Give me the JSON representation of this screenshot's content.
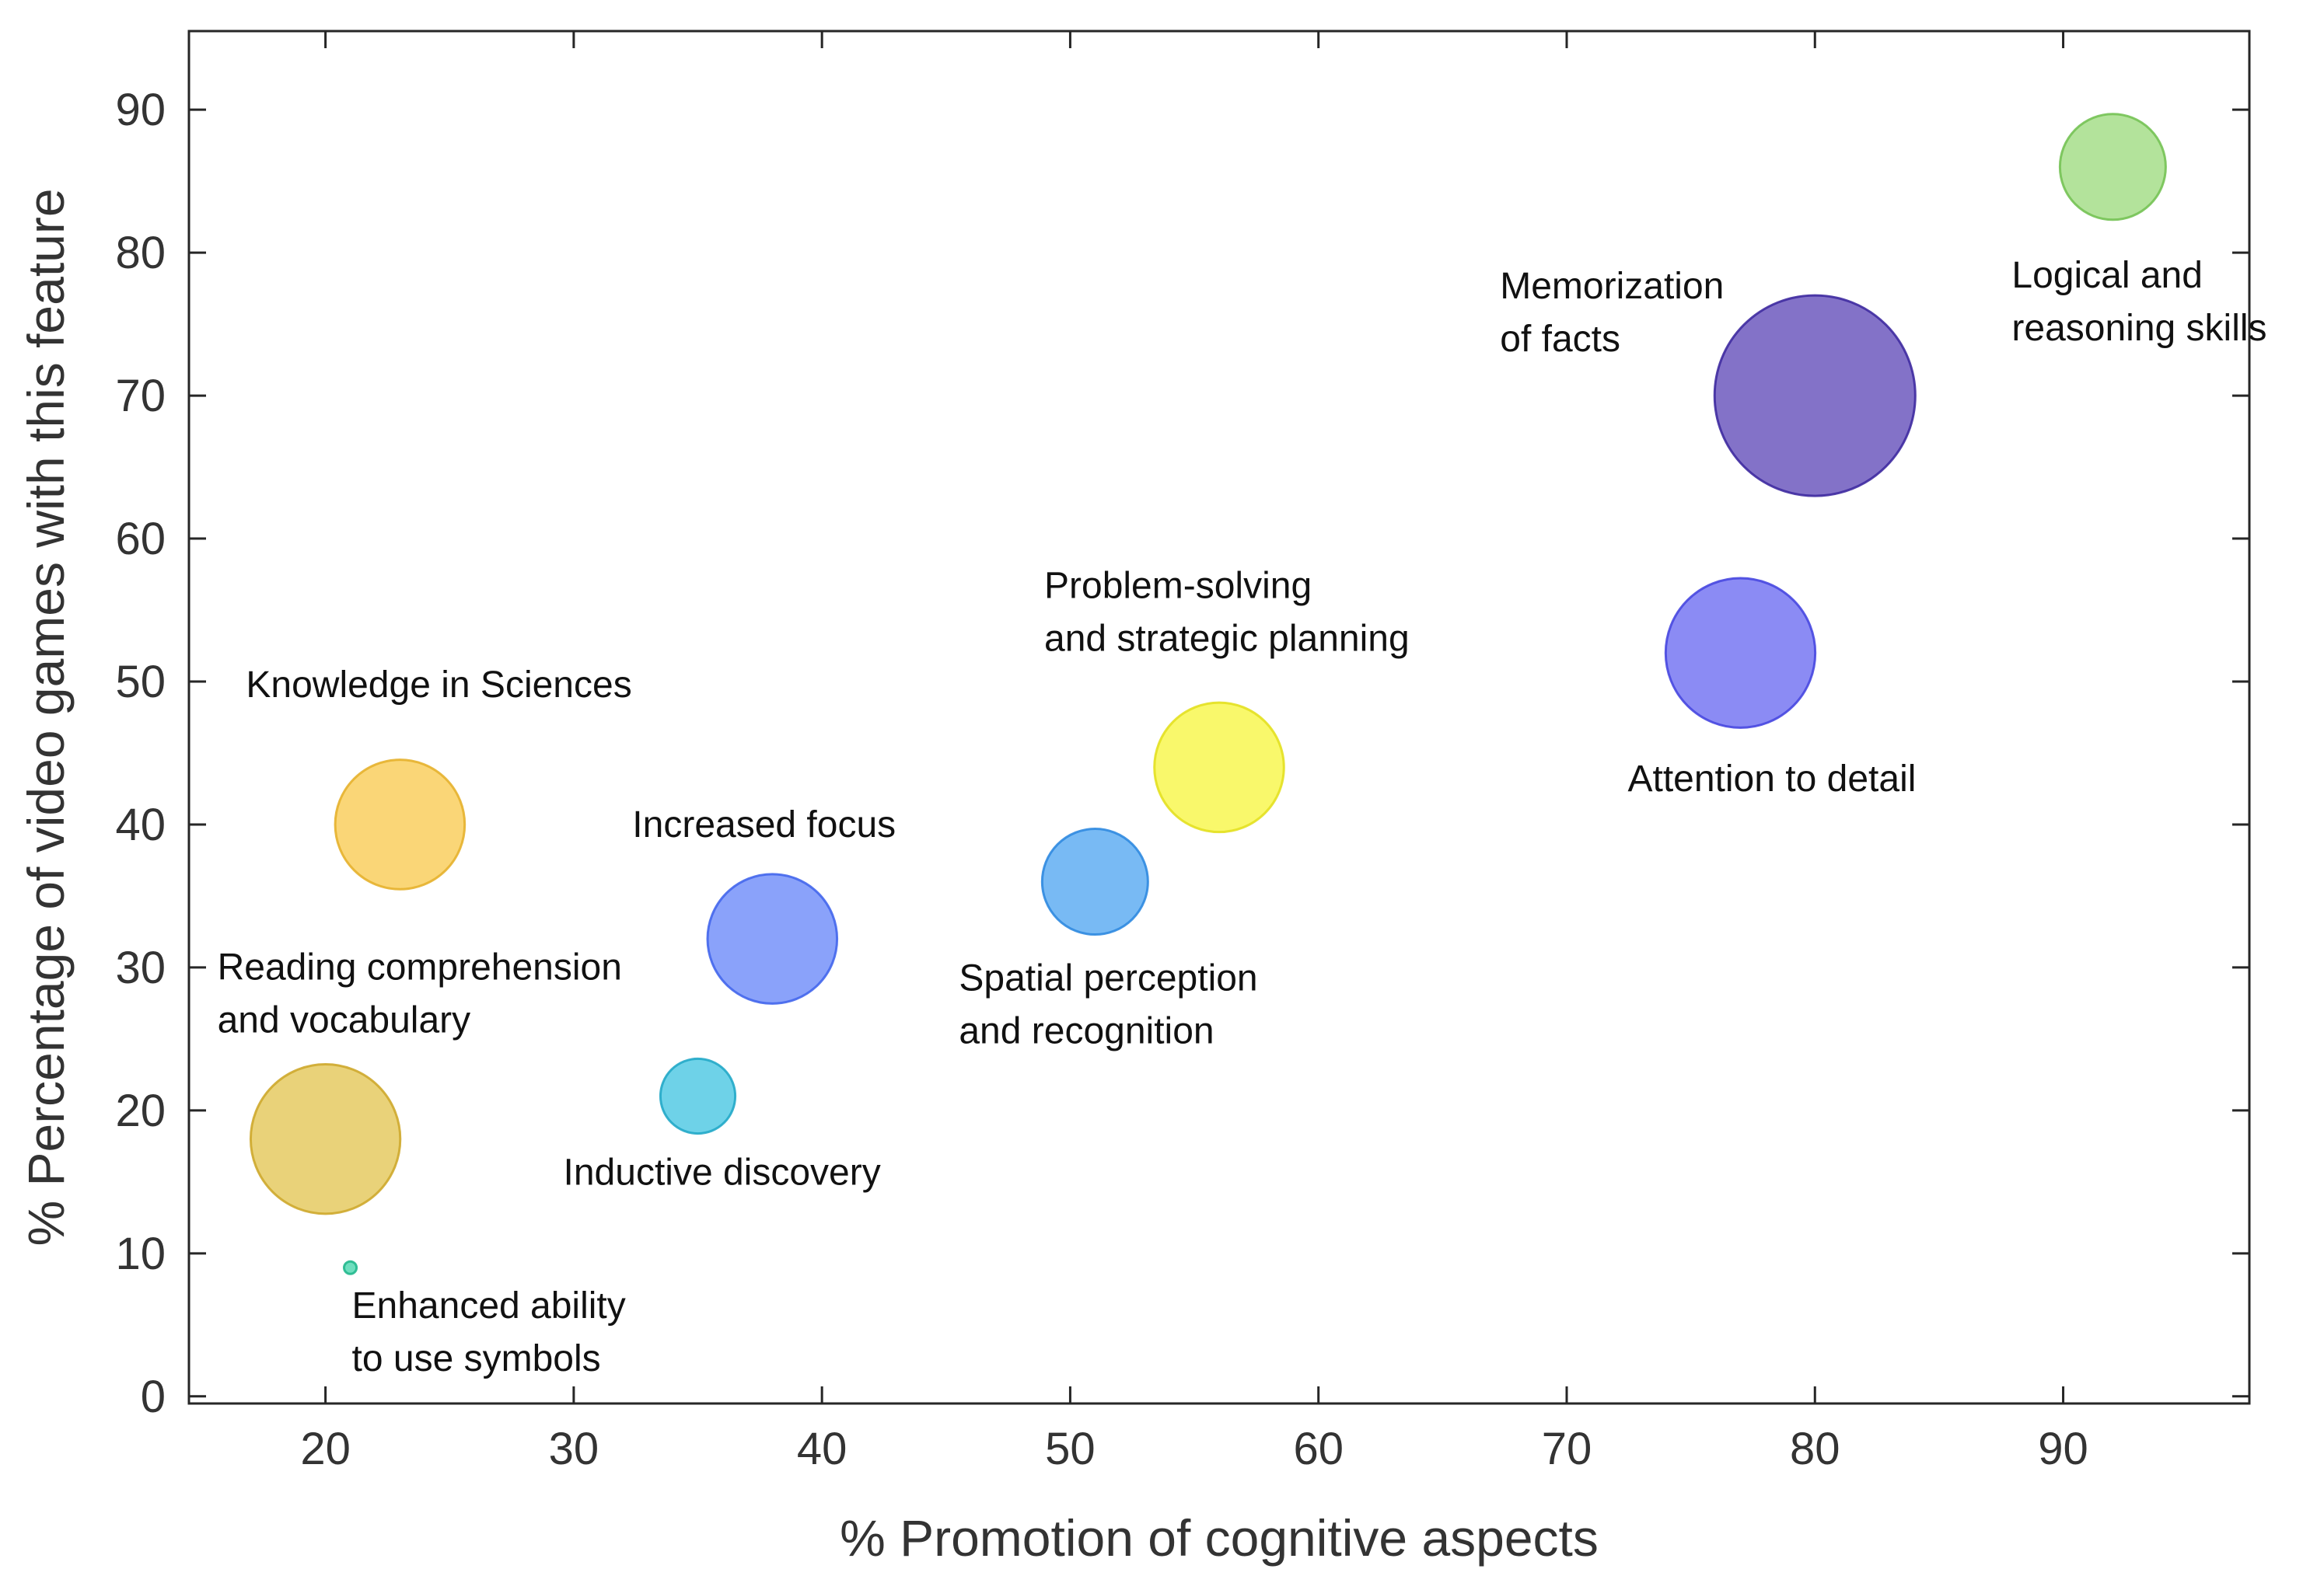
{
  "chart_data": {
    "type": "scatter",
    "subtype": "bubble",
    "title": "",
    "xlabel": "% Promotion of cognitive aspects",
    "ylabel": "% Percentage of video games with this feature",
    "xlim": [
      14.5,
      97.5
    ],
    "ylim": [
      -0.5,
      95.5
    ],
    "xticks": [
      20,
      30,
      40,
      50,
      60,
      70,
      80,
      90
    ],
    "yticks": [
      0,
      10,
      20,
      30,
      40,
      50,
      60,
      70,
      80,
      90
    ],
    "grid": false,
    "bubbles": [
      {
        "label_lines": [
          "Logical and",
          "reasoning skills"
        ],
        "x": 92,
        "y": 86,
        "size": 5,
        "color": "#99d97a",
        "stroke": "#74c254"
      },
      {
        "label_lines": [
          "Memorization",
          "of facts"
        ],
        "x": 80,
        "y": 70,
        "size": 18,
        "color": "#5a43b5",
        "stroke": "#3e2aa0"
      },
      {
        "label_lines": [
          "Attention to detail"
        ],
        "x": 77,
        "y": 52,
        "size": 10,
        "color": "#6464f0",
        "stroke": "#4747e0"
      },
      {
        "label_lines": [
          "Problem-solving",
          "and strategic planning"
        ],
        "x": 56,
        "y": 44,
        "size": 7.5,
        "color": "#f7f53a",
        "stroke": "#e3e020"
      },
      {
        "label_lines": [
          "Spatial perception",
          "and recognition"
        ],
        "x": 51,
        "y": 36,
        "size": 5,
        "color": "#4ba3f0",
        "stroke": "#2f8ae0"
      },
      {
        "label_lines": [
          "Increased focus"
        ],
        "x": 38,
        "y": 32,
        "size": 7.5,
        "color": "#6383f8",
        "stroke": "#4366ec"
      },
      {
        "label_lines": [
          "Knowledge in Sciences"
        ],
        "x": 23,
        "y": 40,
        "size": 7.5,
        "color": "#f8c84a",
        "stroke": "#e5b12c"
      },
      {
        "label_lines": [
          "Inductive discovery"
        ],
        "x": 35,
        "y": 21,
        "size": 2.5,
        "color": "#3dc3e0",
        "stroke": "#22a8c8"
      },
      {
        "label_lines": [
          "Reading comprehension",
          "and vocabulary"
        ],
        "x": 20,
        "y": 18,
        "size": 10,
        "color": "#e2c34c",
        "stroke": "#cea82c"
      },
      {
        "label_lines": [
          "Enhanced ability",
          "to use symbols"
        ],
        "x": 21,
        "y": 9,
        "size": 0.07,
        "color": "#3ed3a8",
        "stroke": "#22b88d"
      }
    ]
  }
}
